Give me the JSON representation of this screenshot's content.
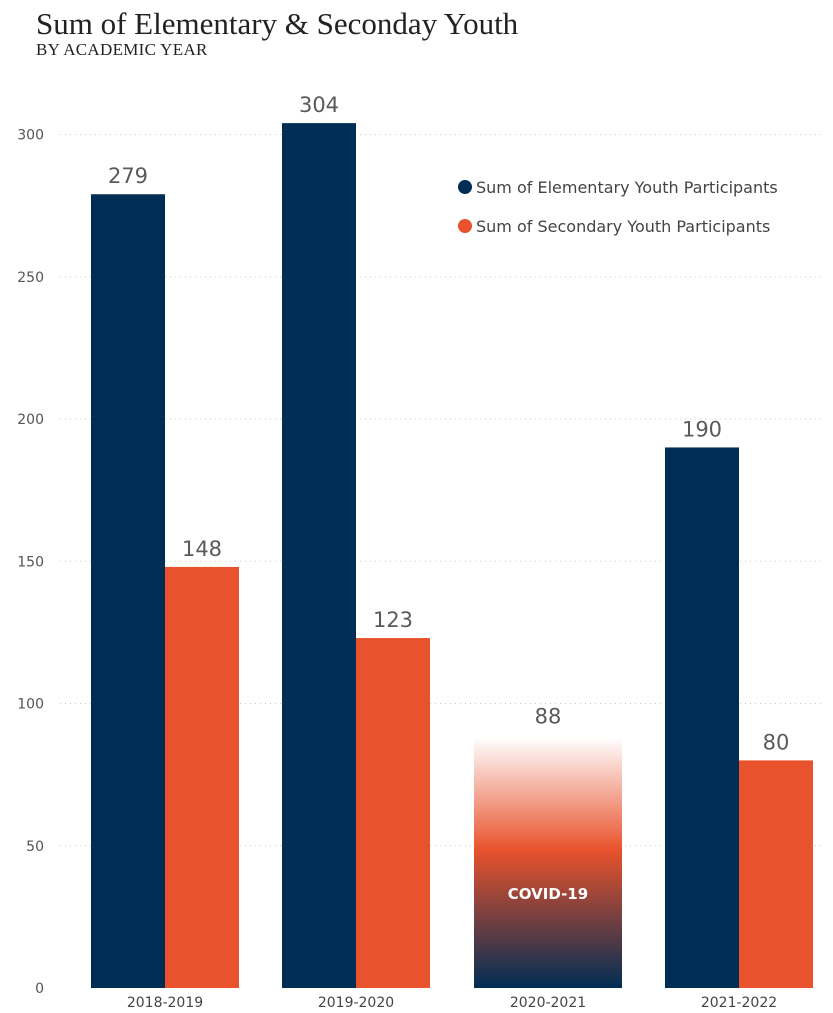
{
  "chart_data": {
    "type": "bar",
    "title": "Sum of Elementary & Seconday Youth",
    "subtitle": "BY ACADEMIC YEAR",
    "xlabel": "",
    "ylabel": "",
    "ylim": [
      0,
      310
    ],
    "yticks": [
      0,
      50,
      100,
      150,
      200,
      250,
      300
    ],
    "grid": true,
    "legend_position": "top-right",
    "categories": [
      "2018-2019",
      "2019-2020",
      "2020-2021",
      "2021-2022"
    ],
    "series": [
      {
        "name": "Sum of Elementary Youth Participants",
        "color": "#002d54",
        "values": [
          279,
          304,
          null,
          190
        ]
      },
      {
        "name": "Sum of Secondary Youth Participants",
        "color": "#e8522c",
        "values": [
          148,
          123,
          null,
          80
        ]
      }
    ],
    "combined": {
      "category": "2020-2021",
      "value": 88,
      "annotation": "COVID-19"
    }
  }
}
